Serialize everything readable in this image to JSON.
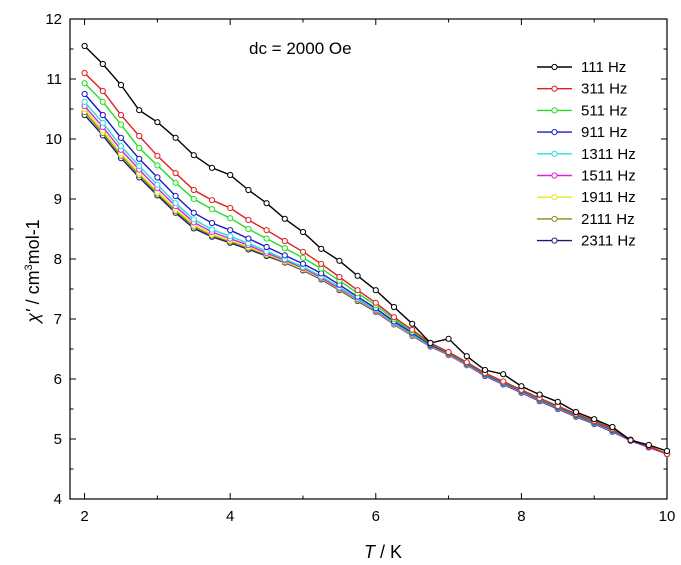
{
  "chart_data": {
    "type": "line",
    "title": "",
    "annotation": "dc = 2000 Oe",
    "xlabel": {
      "symbol": "T",
      "unit": " / K"
    },
    "ylabel": {
      "symbol": "χ'",
      "unit_prefix": " / cm",
      "unit_sup": "3",
      "unit_suffix": "mol-1"
    },
    "xlim": [
      1.8,
      10
    ],
    "ylim": [
      4,
      12
    ],
    "xticks": [
      2,
      4,
      6,
      8,
      10
    ],
    "yticks": [
      4,
      5,
      6,
      7,
      8,
      9,
      10,
      11,
      12
    ],
    "legend_position": "top-right",
    "grid": false,
    "x": [
      2,
      2.25,
      2.5,
      2.75,
      3,
      3.25,
      3.5,
      3.75,
      4,
      4.25,
      4.5,
      4.75,
      5,
      5.25,
      5.5,
      5.75,
      6,
      6.25,
      6.5,
      6.75,
      7,
      7.25,
      7.5,
      7.75,
      8,
      8.25,
      8.5,
      8.75,
      9,
      9.25,
      9.5,
      9.75,
      10
    ],
    "series": [
      {
        "name": "111 Hz",
        "color": "#000000",
        "values": [
          11.55,
          11.25,
          10.9,
          10.48,
          10.28,
          10.02,
          9.73,
          9.52,
          9.4,
          9.15,
          8.93,
          8.67,
          8.45,
          8.17,
          7.97,
          7.72,
          7.48,
          7.2,
          6.92,
          6.6,
          6.67,
          6.38,
          6.15,
          6.08,
          5.88,
          5.74,
          5.62,
          5.45,
          5.33,
          5.2,
          4.98,
          4.9,
          4.8
        ]
      },
      {
        "name": "311 Hz",
        "color": "#e02020",
        "values": [
          11.1,
          10.8,
          10.4,
          10.05,
          9.72,
          9.43,
          9.15,
          8.98,
          8.85,
          8.65,
          8.48,
          8.3,
          8.12,
          7.92,
          7.7,
          7.48,
          7.27,
          7.03,
          6.82,
          6.6,
          6.45,
          6.28,
          6.1,
          5.96,
          5.82,
          5.68,
          5.55,
          5.42,
          5.3,
          5.17,
          4.99,
          4.88,
          4.75
        ]
      },
      {
        "name": "511 Hz",
        "color": "#22dd22",
        "values": [
          10.93,
          10.62,
          10.24,
          9.85,
          9.56,
          9.27,
          9.0,
          8.83,
          8.68,
          8.5,
          8.34,
          8.18,
          8.02,
          7.84,
          7.64,
          7.43,
          7.23,
          7.0,
          6.79,
          6.59,
          6.44,
          6.27,
          6.09,
          5.95,
          5.81,
          5.67,
          5.54,
          5.41,
          5.29,
          5.16,
          4.99,
          4.88,
          4.76
        ]
      },
      {
        "name": "911 Hz",
        "color": "#1a1acc",
        "values": [
          10.75,
          10.4,
          10.02,
          9.67,
          9.36,
          9.05,
          8.77,
          8.6,
          8.48,
          8.34,
          8.2,
          8.06,
          7.92,
          7.76,
          7.57,
          7.37,
          7.18,
          6.96,
          6.77,
          6.57,
          6.43,
          6.26,
          6.08,
          5.94,
          5.8,
          5.66,
          5.53,
          5.4,
          5.28,
          5.15,
          4.98,
          4.87,
          4.76
        ]
      },
      {
        "name": "1311 Hz",
        "color": "#22e0e0",
        "values": [
          10.62,
          10.27,
          9.88,
          9.55,
          9.24,
          8.93,
          8.66,
          8.49,
          8.38,
          8.26,
          8.13,
          8.0,
          7.87,
          7.71,
          7.53,
          7.34,
          7.16,
          6.94,
          6.75,
          6.56,
          6.42,
          6.25,
          6.07,
          5.93,
          5.79,
          5.65,
          5.52,
          5.39,
          5.27,
          5.14,
          4.98,
          4.87,
          4.76
        ]
      },
      {
        "name": "1511 Hz",
        "color": "#e020e0",
        "values": [
          10.55,
          10.2,
          9.82,
          9.49,
          9.18,
          8.88,
          8.61,
          8.45,
          8.34,
          8.23,
          8.1,
          7.98,
          7.85,
          7.69,
          7.51,
          7.33,
          7.15,
          6.93,
          6.74,
          6.55,
          6.41,
          6.24,
          6.06,
          5.92,
          5.78,
          5.64,
          5.51,
          5.38,
          5.26,
          5.13,
          4.97,
          4.86,
          4.75
        ]
      },
      {
        "name": "1911 Hz",
        "color": "#e8e820",
        "values": [
          10.5,
          10.14,
          9.76,
          9.43,
          9.12,
          8.83,
          8.57,
          8.41,
          8.31,
          8.2,
          8.08,
          7.96,
          7.83,
          7.68,
          7.5,
          7.32,
          7.14,
          6.92,
          6.73,
          6.55,
          6.41,
          6.24,
          6.06,
          5.92,
          5.78,
          5.64,
          5.51,
          5.38,
          5.26,
          5.13,
          4.97,
          4.86,
          4.75
        ]
      },
      {
        "name": "2111 Hz",
        "color": "#8a8a10",
        "values": [
          10.45,
          10.1,
          9.72,
          9.4,
          9.09,
          8.8,
          8.54,
          8.39,
          8.29,
          8.18,
          8.07,
          7.95,
          7.82,
          7.67,
          7.49,
          7.31,
          7.13,
          6.92,
          6.73,
          6.54,
          6.4,
          6.23,
          6.06,
          5.92,
          5.78,
          5.64,
          5.51,
          5.38,
          5.26,
          5.13,
          4.97,
          4.86,
          4.75
        ]
      },
      {
        "name": "2311 Hz",
        "color": "#1a1a70",
        "values": [
          10.4,
          10.06,
          9.68,
          9.36,
          9.06,
          8.77,
          8.51,
          8.37,
          8.27,
          8.16,
          8.05,
          7.94,
          7.81,
          7.66,
          7.48,
          7.3,
          7.12,
          6.91,
          6.72,
          6.54,
          6.4,
          6.23,
          6.05,
          5.91,
          5.77,
          5.63,
          5.5,
          5.37,
          5.25,
          5.12,
          4.97,
          4.86,
          4.75
        ]
      }
    ]
  }
}
